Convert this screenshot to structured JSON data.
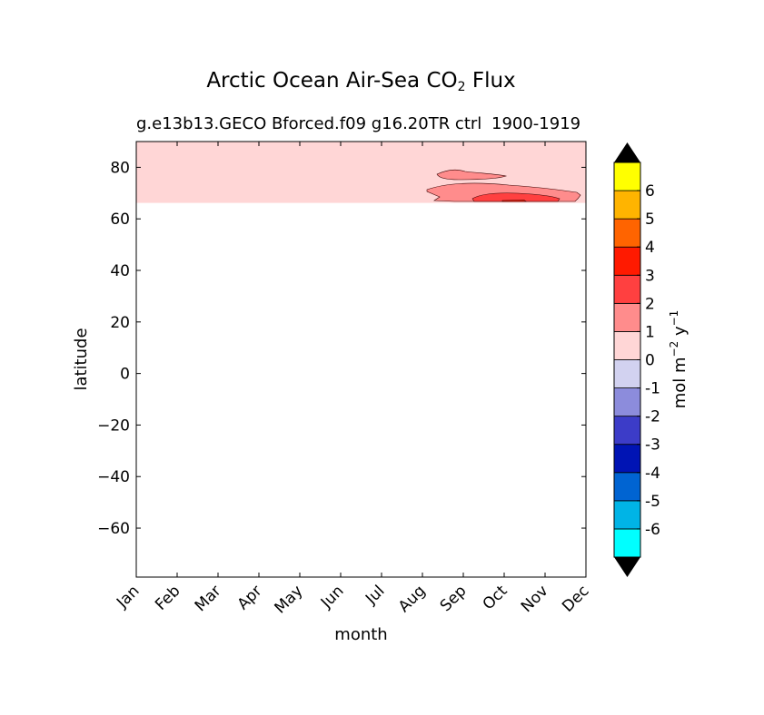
{
  "chart_data": {
    "type": "contour",
    "title": "Arctic Ocean Air-Sea CO",
    "title_sub": "2",
    "title_suffix": " Flux",
    "subtitle_left": "g.e13b13.GECO Bforced.f09 g16.20TR ctrl",
    "subtitle_right": "1900-1919",
    "xlabel": "month",
    "ylabel": "latitude",
    "x_ticks": [
      "Jan",
      "Feb",
      "Mar",
      "Apr",
      "May",
      "Jun",
      "Jul",
      "Aug",
      "Sep",
      "Oct",
      "Nov",
      "Dec"
    ],
    "ylim": [
      -79,
      90
    ],
    "y_ticks": [
      80,
      60,
      40,
      20,
      0,
      -20,
      -40,
      -60
    ],
    "y_tick_labels": [
      "80",
      "60",
      "40",
      "20",
      "0",
      "−20",
      "−40",
      "−60"
    ],
    "regions": [
      {
        "level": "0 to 1",
        "lat_min": 66.2,
        "lat_max": 90,
        "month_min": 1,
        "month_max": 12,
        "color": "#ffd6d6"
      },
      {
        "level": "1 to 2",
        "description_x": [
          8.2,
          12
        ],
        "lat_approx": [
          66,
          73
        ],
        "color": "#ff8c8c"
      },
      {
        "level": "1 to 2",
        "description_x": [
          8.4,
          10.1
        ],
        "lat_approx": [
          76,
          79
        ],
        "color": "#ff8c8c"
      },
      {
        "level": "2 to 3",
        "description_x": [
          9.2,
          11.4
        ],
        "lat_approx": [
          66,
          69.5
        ],
        "color": "#ff4040"
      },
      {
        "level": "3 to 4",
        "description_x": [
          10,
          10.6
        ],
        "lat_approx": [
          66.2,
          66.8
        ],
        "color": "#ff1a00"
      }
    ],
    "colorbar": {
      "label": "mol m",
      "label_sup1": "−2",
      "label_mid": " y",
      "label_sup2": "−1",
      "extend": "both",
      "colors": [
        "#00ffff",
        "#00b4e6",
        "#0064d2",
        "#0014b4",
        "#3c3cc8",
        "#8c8cdc",
        "#d2d2f0",
        "#ffd6d6",
        "#ff8c8c",
        "#ff4040",
        "#ff1a00",
        "#ff6400",
        "#ffb400",
        "#ffff00"
      ],
      "extend_low_color": "#000000",
      "extend_high_color": "#000000",
      "tick_labels": [
        "-6",
        "-5",
        "-4",
        "-3",
        "-2",
        "-1",
        "0",
        "1",
        "2",
        "3",
        "4",
        "5",
        "6"
      ]
    }
  }
}
